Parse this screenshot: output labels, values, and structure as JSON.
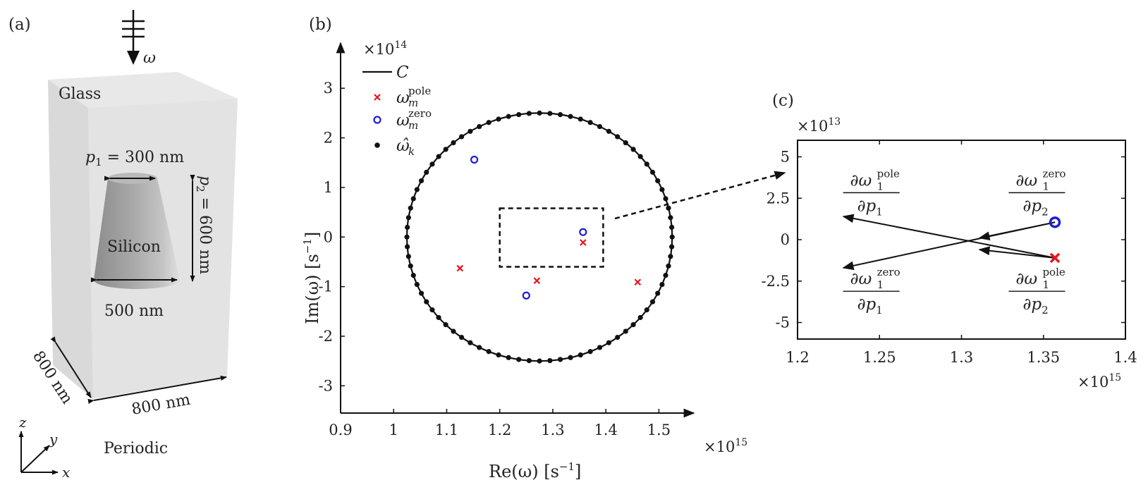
{
  "panel_a": {
    "label": "(a)",
    "omega": "ω",
    "glass": "Glass",
    "p1": "p",
    "p1_sub": "1",
    "p1_val": " = 300 nm",
    "p2": "p",
    "p2_sub": "2",
    "p2_val": " = 600 nm",
    "silicon": "Silicon",
    "bottom_diam": "500 nm",
    "dim_left": "800 nm",
    "dim_bottom": "800 nm",
    "axis_x": "x",
    "axis_y": "y",
    "axis_z": "z",
    "periodic": "Periodic"
  },
  "panel_b": {
    "label": "(b)"
  },
  "panel_c": {
    "label": "(c)"
  },
  "colors": {
    "pole": "#e8141b",
    "zero": "#1f1fd6",
    "contour": "#111111"
  },
  "chart_data": [
    {
      "type": "scatter",
      "panel": "(b)",
      "xlabel_main": "Re(ω) [s",
      "xlabel_sup": "−1",
      "xlabel_end": "]",
      "ylabel_main": "Im(ω) [s",
      "ylabel_sup": "−1",
      "ylabel_end": "]",
      "xlim": [
        0.9,
        1.55
      ],
      "ylim": [
        -3.55,
        3.6
      ],
      "x_ticks": [
        0.9,
        1,
        1.1,
        1.2,
        1.3,
        1.4,
        1.5
      ],
      "x_tick_labels": [
        "0.9",
        "1",
        "1.1",
        "1.2",
        "1.3",
        "1.4",
        "1.5"
      ],
      "y_ticks": [
        3,
        2,
        1,
        0,
        -1,
        -2,
        -3
      ],
      "y_tick_labels": [
        "3",
        "2",
        "1",
        "0",
        "-1",
        "-2",
        "-3"
      ],
      "x_multiplier_base": "×10",
      "x_multiplier_exp": "15",
      "y_multiplier_base": "×10",
      "y_multiplier_exp": "14",
      "legend_placement": "top-left",
      "legend": [
        {
          "symbol": "line",
          "name": "C"
        },
        {
          "symbol": "cross",
          "name": "ω",
          "sup": "pole",
          "sub": "m"
        },
        {
          "symbol": "circle",
          "name": "ω",
          "sup": "zero",
          "sub": "m"
        },
        {
          "symbol": "dot",
          "name": "ω̂",
          "sub": "k"
        }
      ],
      "contour": {
        "center": [
          1.275,
          0
        ],
        "radius_x": 0.25,
        "radius_y": 2.5,
        "samples": 80
      },
      "poles": [
        [
          1.125,
          -0.63
        ],
        [
          1.27,
          -0.88
        ],
        [
          1.357,
          -0.11
        ],
        [
          1.46,
          -0.91
        ]
      ],
      "zeros": [
        [
          1.152,
          1.56
        ],
        [
          1.25,
          -1.18
        ],
        [
          1.357,
          0.1
        ]
      ],
      "zoom_box": {
        "x": [
          1.2,
          1.395
        ],
        "y": [
          -0.6,
          0.58
        ]
      }
    },
    {
      "type": "scatter",
      "panel": "(c)",
      "xlim": [
        1.2,
        1.4
      ],
      "ylim": [
        -6,
        6
      ],
      "x_ticks": [
        1.2,
        1.25,
        1.3,
        1.35,
        1.4
      ],
      "x_tick_labels": [
        "1.2",
        "1.25",
        "1.3",
        "1.35",
        "1.4"
      ],
      "y_ticks": [
        5,
        2.5,
        0,
        -2.5,
        -5
      ],
      "y_tick_labels": [
        "5",
        "2.5",
        "0",
        "-2.5",
        "-5"
      ],
      "x_multiplier_base": "×10",
      "x_multiplier_exp": "15",
      "y_multiplier_base": "×10",
      "y_multiplier_exp": "13",
      "zero_point": [
        1.357,
        1.05
      ],
      "pole_point": [
        1.357,
        -1.1
      ],
      "arrows": [
        {
          "from": "pole",
          "to": [
            1.228,
            1.4
          ]
        },
        {
          "from": "pole",
          "to": [
            1.311,
            -0.6
          ]
        },
        {
          "from": "zero",
          "to": [
            1.228,
            -1.7
          ]
        },
        {
          "from": "zero",
          "to": [
            1.311,
            0.1
          ]
        }
      ],
      "labels": [
        {
          "num_a": "∂ω",
          "num_sub": "1",
          "num_sup": "pole",
          "den_a": "∂p",
          "den_sub": "1",
          "pos": [
            1.245,
            2.75
          ]
        },
        {
          "num_a": "∂ω",
          "num_sub": "1",
          "num_sup": "zero",
          "den_a": "∂p",
          "den_sub": "2",
          "pos": [
            1.346,
            2.75
          ]
        },
        {
          "num_a": "∂ω",
          "num_sub": "1",
          "num_sup": "zero",
          "den_a": "∂p",
          "den_sub": "1",
          "pos": [
            1.245,
            -3.2
          ]
        },
        {
          "num_a": "∂ω",
          "num_sub": "1",
          "num_sup": "pole",
          "den_a": "∂p",
          "den_sub": "2",
          "pos": [
            1.346,
            -3.2
          ]
        }
      ]
    }
  ]
}
